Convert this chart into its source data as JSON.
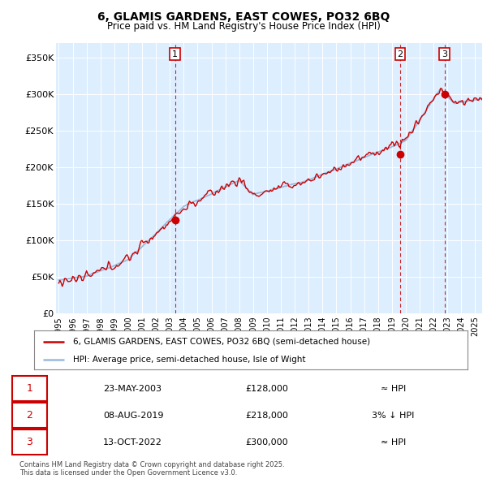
{
  "title": "6, GLAMIS GARDENS, EAST COWES, PO32 6BQ",
  "subtitle": "Price paid vs. HM Land Registry's House Price Index (HPI)",
  "ylim": [
    0,
    370000
  ],
  "yticks": [
    0,
    50000,
    100000,
    150000,
    200000,
    250000,
    300000,
    350000
  ],
  "ytick_labels": [
    "£0",
    "£50K",
    "£100K",
    "£150K",
    "£200K",
    "£250K",
    "£300K",
    "£350K"
  ],
  "hpi_color": "#99bbdd",
  "price_color": "#cc0000",
  "bg_color": "#ddeeff",
  "sale_points": [
    {
      "date": 2003.38,
      "price": 128000,
      "label": "1"
    },
    {
      "date": 2019.59,
      "price": 218000,
      "label": "2"
    },
    {
      "date": 2022.79,
      "price": 300000,
      "label": "3"
    }
  ],
  "legend_line1": "6, GLAMIS GARDENS, EAST COWES, PO32 6BQ (semi-detached house)",
  "legend_line2": "HPI: Average price, semi-detached house, Isle of Wight",
  "table_entries": [
    {
      "num": "1",
      "date": "23-MAY-2003",
      "price": "£128,000",
      "rel": "≈ HPI"
    },
    {
      "num": "2",
      "date": "08-AUG-2019",
      "price": "£218,000",
      "rel": "3% ↓ HPI"
    },
    {
      "num": "3",
      "date": "13-OCT-2022",
      "price": "£300,000",
      "rel": "≈ HPI"
    }
  ],
  "footer": "Contains HM Land Registry data © Crown copyright and database right 2025.\nThis data is licensed under the Open Government Licence v3.0.",
  "xmin": 1994.8,
  "xmax": 2025.5,
  "xticks": [
    1995,
    1996,
    1997,
    1998,
    1999,
    2000,
    2001,
    2002,
    2003,
    2004,
    2005,
    2006,
    2007,
    2008,
    2009,
    2010,
    2011,
    2012,
    2013,
    2014,
    2015,
    2016,
    2017,
    2018,
    2019,
    2020,
    2021,
    2022,
    2023,
    2024,
    2025
  ]
}
